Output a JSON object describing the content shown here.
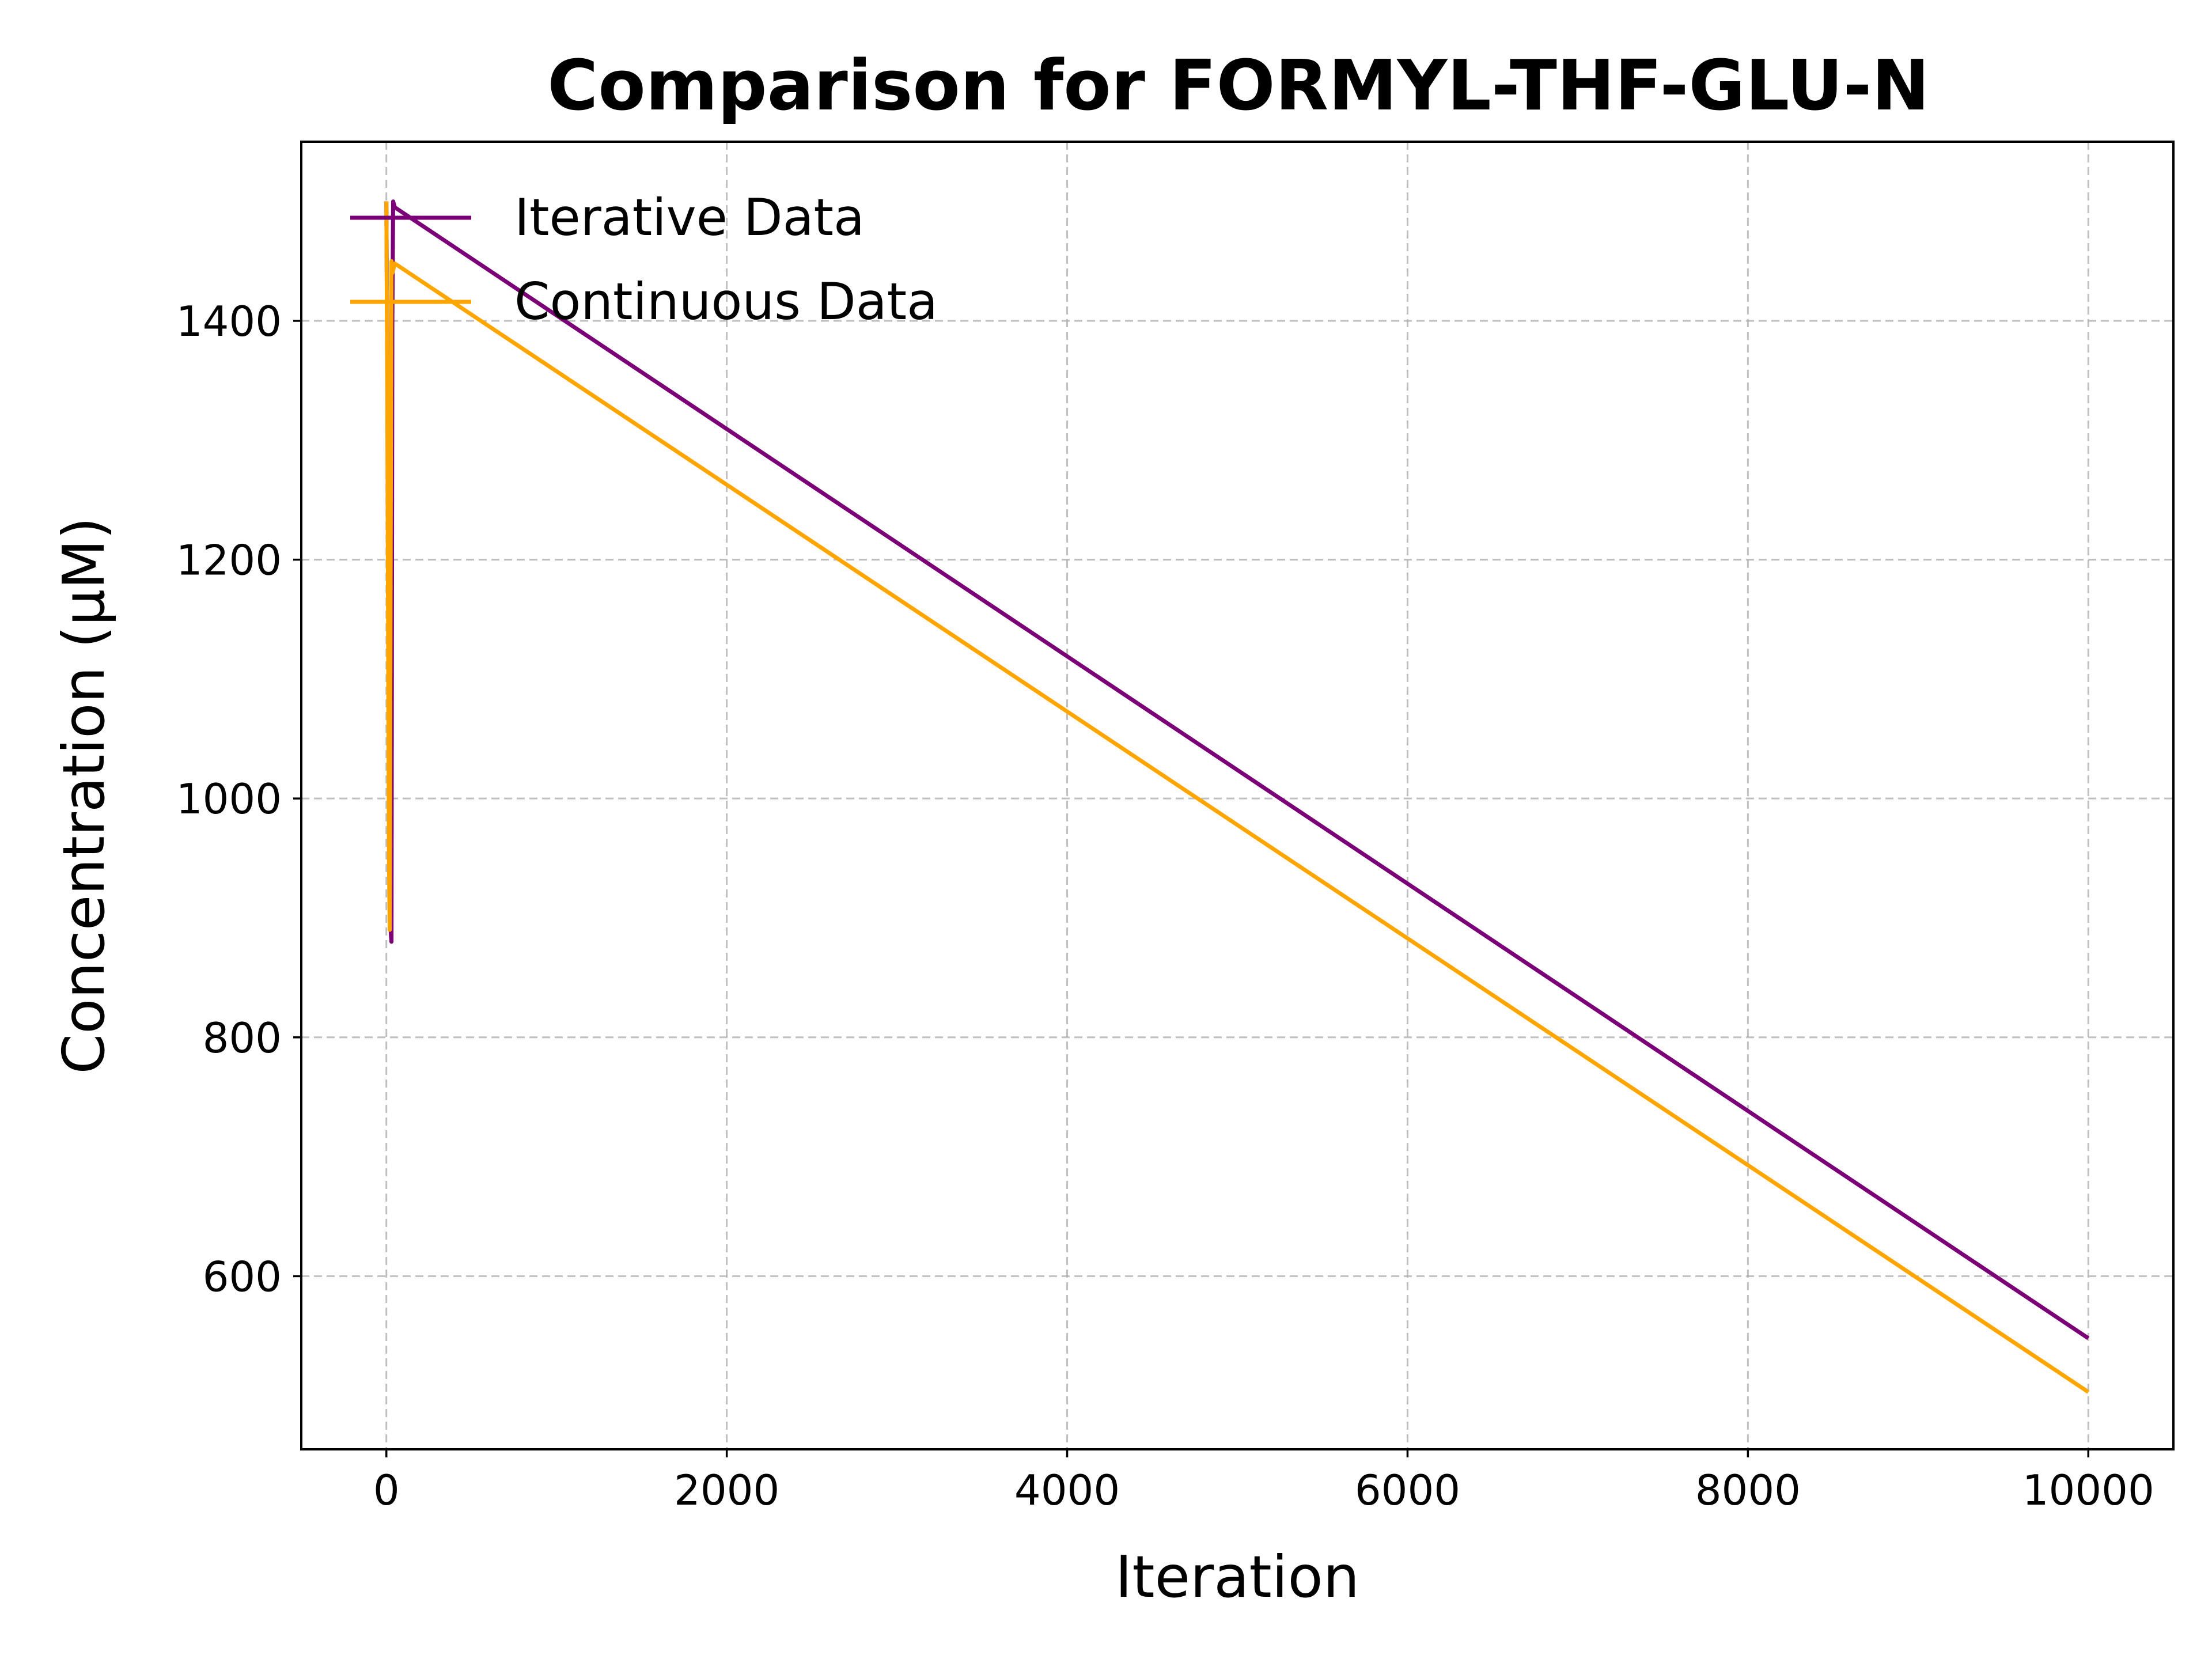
{
  "chart_data": {
    "type": "line",
    "title": "Comparison for FORMYL-THF-GLU-N",
    "xlabel": "Iteration",
    "ylabel": "Concentration (μM)",
    "xlim": [
      -500,
      10500
    ],
    "ylim": [
      455,
      1550
    ],
    "xticks": [
      0,
      2000,
      4000,
      6000,
      8000,
      10000
    ],
    "yticks": [
      600,
      800,
      1000,
      1200,
      1400
    ],
    "grid": true,
    "legend_position": "upper left",
    "series": [
      {
        "name": "Iterative Data",
        "color": "#7b0077",
        "x": [
          0,
          10,
          20,
          25,
          30,
          35,
          40,
          50,
          10000
        ],
        "y": [
          1500,
          1250,
          1000,
          890,
          880,
          1400,
          1500,
          1495,
          548
        ]
      },
      {
        "name": "Continuous Data",
        "color": "#ffa500",
        "x": [
          0,
          5,
          10,
          15,
          20,
          25,
          30,
          35,
          50,
          10000
        ],
        "y": [
          1500,
          1350,
          1150,
          950,
          890,
          1200,
          1450,
          1440,
          1448,
          503
        ]
      }
    ]
  }
}
